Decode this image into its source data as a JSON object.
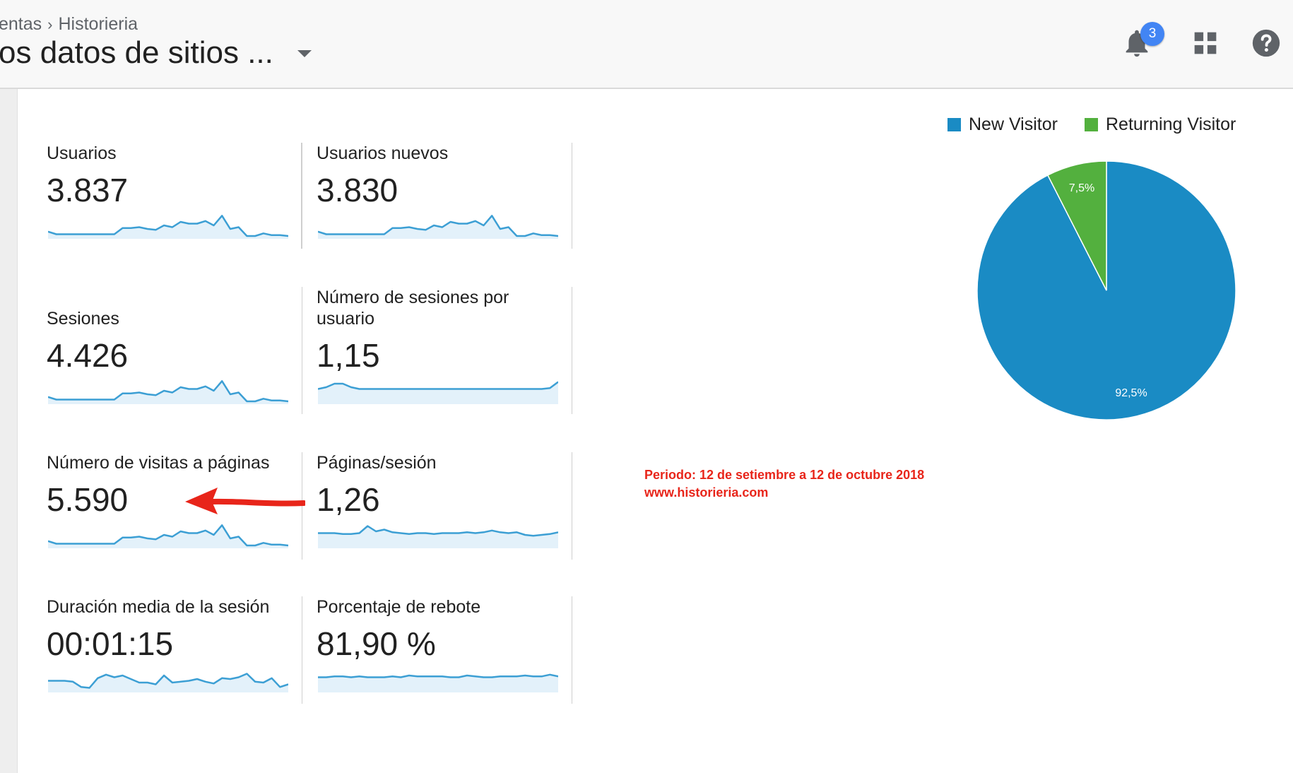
{
  "header": {
    "breadcrumb_prev": "entas",
    "breadcrumb_sep": "›",
    "breadcrumb_current": "Historieria",
    "view_title": "os datos de sitios ...",
    "notification_count": "3"
  },
  "icons": {
    "notifications": "bell-icon",
    "apps": "apps-grid-icon",
    "help": "help-icon",
    "view_dropdown": "caret-down-icon"
  },
  "metrics": [
    {
      "label": "Usuarios",
      "value": "3.837"
    },
    {
      "label": "Usuarios nuevos",
      "value": "3.830"
    },
    {
      "label": "Sesiones",
      "value": "4.426"
    },
    {
      "label": "Número de sesiones por usuario",
      "value": "1,15"
    },
    {
      "label": "Número de visitas a páginas",
      "value": "5.590"
    },
    {
      "label": "Páginas/sesión",
      "value": "1,26"
    },
    {
      "label": "Duración media de la sesión",
      "value": "00:01:15"
    },
    {
      "label": "Porcentaje de rebote",
      "value": "81,90 %"
    }
  ],
  "sparklines": [
    [
      5,
      2,
      2,
      2,
      2,
      2,
      2,
      2,
      2,
      9,
      9,
      10,
      8,
      7,
      12,
      10,
      16,
      14,
      14,
      17,
      12,
      23,
      8,
      10,
      0,
      0,
      3,
      1,
      1,
      0
    ],
    [
      5,
      2,
      2,
      2,
      2,
      2,
      2,
      2,
      2,
      9,
      9,
      10,
      8,
      7,
      12,
      10,
      16,
      14,
      14,
      17,
      12,
      23,
      8,
      10,
      0,
      0,
      3,
      1,
      1,
      0
    ],
    [
      5,
      2,
      2,
      2,
      2,
      2,
      2,
      2,
      2,
      9,
      9,
      10,
      8,
      7,
      12,
      10,
      16,
      14,
      14,
      17,
      12,
      23,
      8,
      10,
      0,
      0,
      3,
      1,
      1,
      0
    ],
    [
      14,
      16,
      20,
      20,
      16,
      14,
      14,
      14,
      14,
      14,
      14,
      14,
      14,
      14,
      14,
      14,
      14,
      14,
      14,
      14,
      14,
      14,
      14,
      14,
      14,
      14,
      14,
      14,
      15,
      22
    ],
    [
      5,
      2,
      2,
      2,
      2,
      2,
      2,
      2,
      2,
      9,
      9,
      10,
      8,
      7,
      12,
      10,
      16,
      14,
      14,
      17,
      12,
      23,
      8,
      10,
      0,
      0,
      3,
      1,
      1,
      0
    ],
    [
      14,
      14,
      14,
      13,
      13,
      14,
      22,
      16,
      18,
      15,
      14,
      13,
      14,
      14,
      13,
      14,
      14,
      14,
      15,
      14,
      15,
      17,
      15,
      14,
      15,
      12,
      11,
      12,
      13,
      15
    ],
    [
      10,
      10,
      10,
      9,
      3,
      2,
      13,
      17,
      14,
      16,
      12,
      8,
      8,
      6,
      16,
      8,
      9,
      10,
      12,
      9,
      7,
      13,
      12,
      14,
      18,
      9,
      8,
      13,
      3,
      6
    ],
    [
      14,
      14,
      15,
      15,
      14,
      15,
      14,
      14,
      14,
      15,
      14,
      16,
      15,
      15,
      15,
      15,
      14,
      14,
      16,
      15,
      14,
      14,
      15,
      15,
      15,
      16,
      15,
      15,
      17,
      15
    ]
  ],
  "chart_data": {
    "type": "pie",
    "series": [
      {
        "name": "New Visitor",
        "value": 92.5,
        "label": "92,5%",
        "color": "#1a8bc4"
      },
      {
        "name": "Returning Visitor",
        "value": 7.5,
        "label": "7,5%",
        "color": "#53b03e"
      }
    ],
    "legend_position": "top"
  },
  "annotation": {
    "line1": "Periodo: 12 de setiembre a 12 de octubre 2018",
    "line2": "www.historieria.com",
    "color": "#e8251a"
  },
  "colors": {
    "sparkline_line": "#3c9fd4",
    "sparkline_fill": "#e3f1fa",
    "badge": "#4285f4"
  }
}
